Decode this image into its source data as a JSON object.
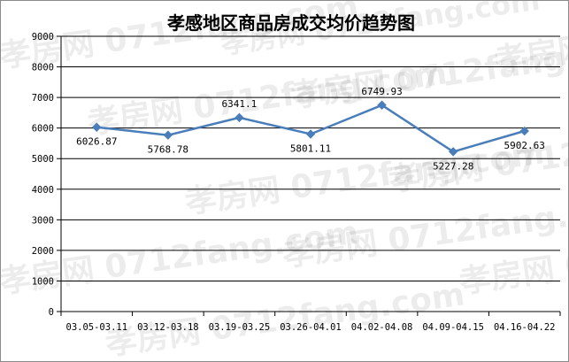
{
  "chart_data": {
    "type": "line",
    "title": "孝感地区商品房成交均价趋势图",
    "categories": [
      "03.05-03.11",
      "03.12-03.18",
      "03.19-03.25",
      "03.26-04.01",
      "04.02-04.08",
      "04.09-04.15",
      "04.16-04.22"
    ],
    "series": [
      {
        "values": [
          6026.87,
          5768.78,
          6341.1,
          5801.11,
          6749.93,
          5227.28,
          5902.63
        ],
        "labels": [
          "6026.87",
          "5768.78",
          "6341.1",
          "5801.11",
          "6749.93",
          "5227.28",
          "5902.63"
        ]
      }
    ],
    "yticks": [
      "0",
      "1000",
      "2000",
      "3000",
      "4000",
      "5000",
      "6000",
      "7000",
      "8000",
      "9000"
    ],
    "ylim": [
      0,
      9000
    ],
    "grid": true,
    "legend": "none",
    "line_color": "#4a7ebb",
    "watermark": "孝房网 0712fang.com"
  }
}
